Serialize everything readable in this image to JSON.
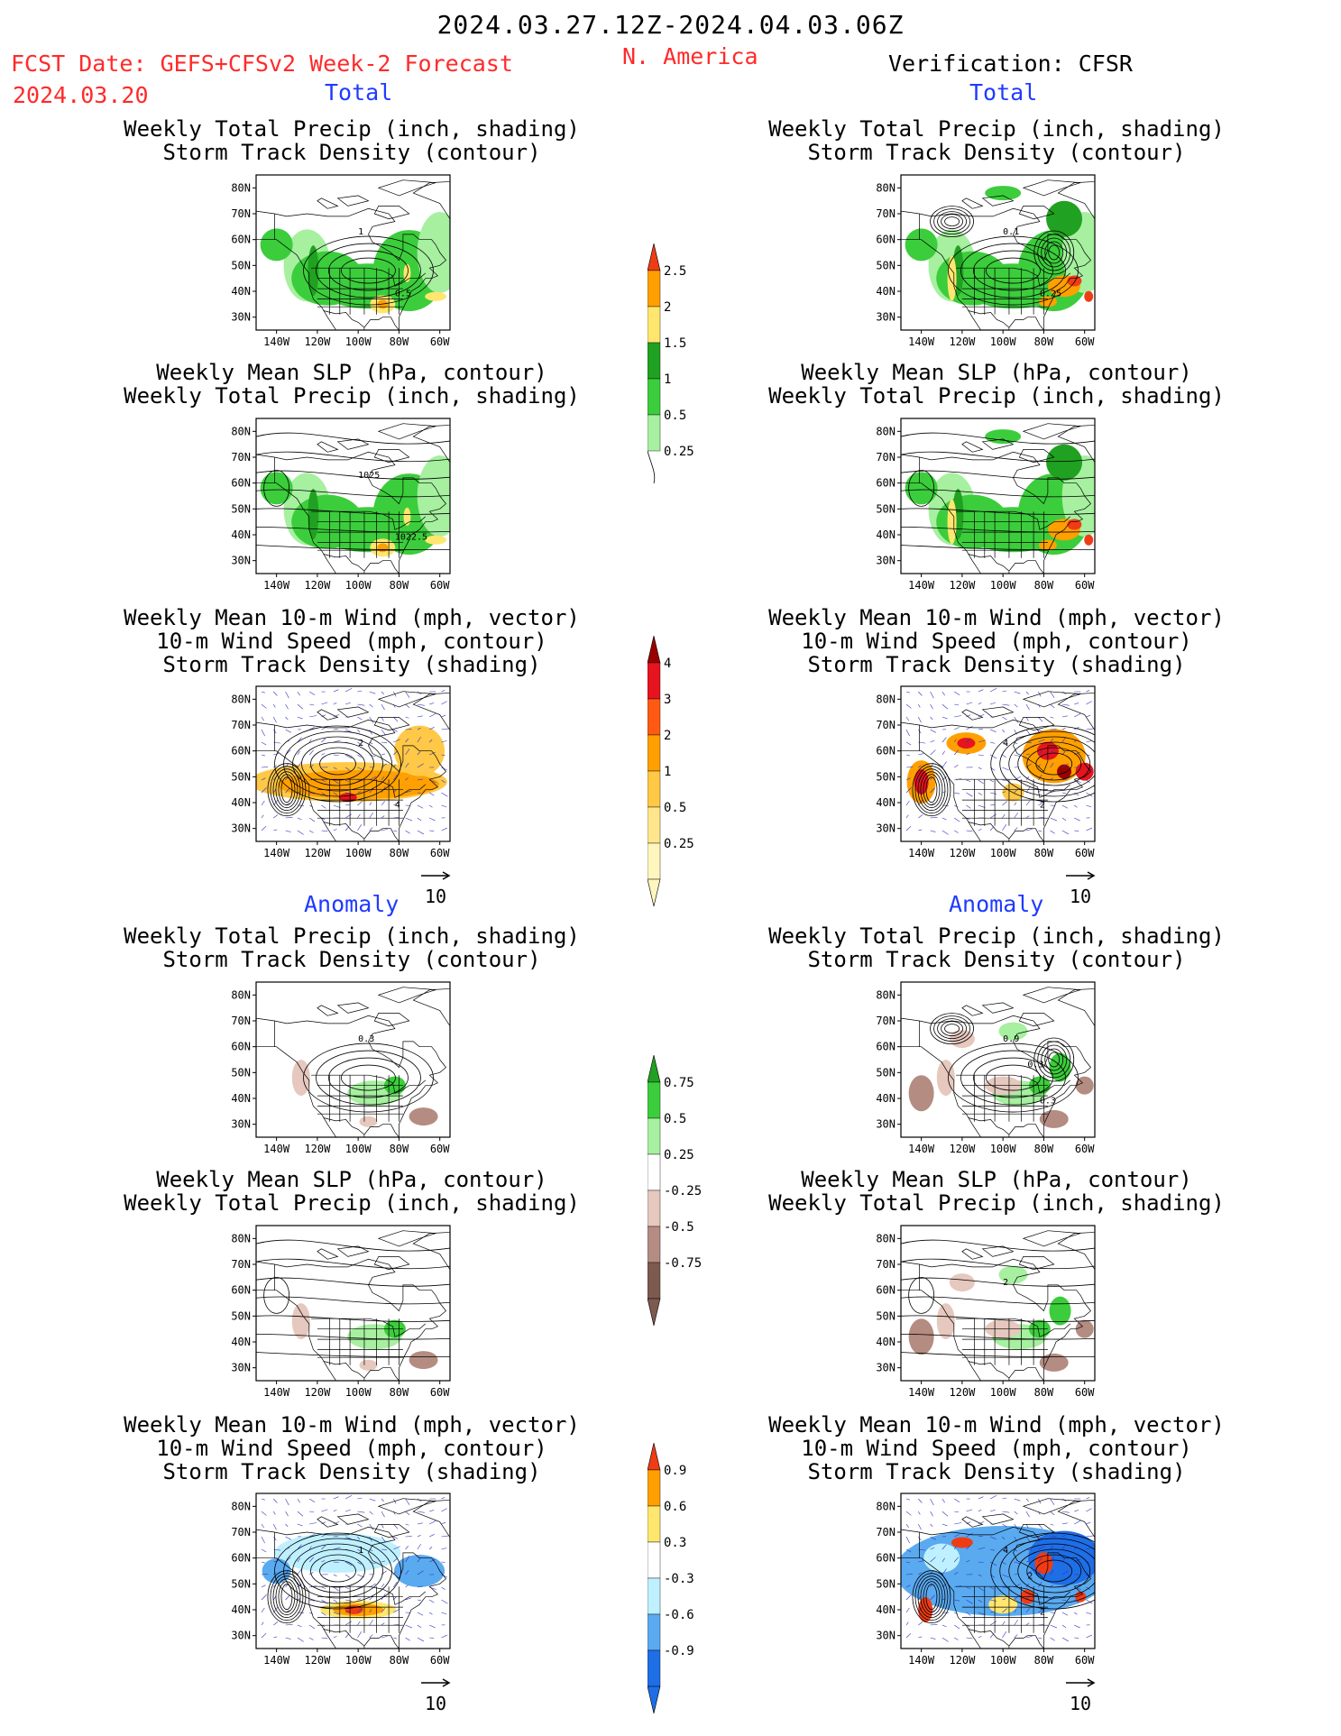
{
  "header": {
    "valid_period": "2024.03.27.12Z-2024.04.03.06Z",
    "fcst_date_label": "FCST Date: GEFS+CFSv2 Week-2 Forecast",
    "fcst_date": "2024.03.20",
    "region": "N. America",
    "verification": "Verification: CFSR"
  },
  "section_labels": {
    "total": "Total",
    "anomaly": "Anomaly"
  },
  "panel_titles": {
    "precip_storm": [
      "Weekly Total Precip (inch, shading)",
      "Storm Track Density (contour)"
    ],
    "slp_precip": [
      "Weekly Mean SLP (hPa, contour)",
      "Weekly Total Precip (inch, shading)"
    ],
    "wind_storm": [
      "Weekly Mean 10-m Wind (mph, vector)",
      "10-m Wind Speed (mph, contour)",
      "Storm Track Density (shading)"
    ]
  },
  "axes": {
    "lat_labels": [
      "80N",
      "70N",
      "60N",
      "50N",
      "40N",
      "30N"
    ],
    "lon_labels": [
      "140W",
      "120W",
      "100W",
      "80W",
      "60W"
    ]
  },
  "vector_reference": "10",
  "map_labels": {
    "fcst_total_precip": [
      "1",
      "0.5"
    ],
    "fcst_total_slp": [
      "1025",
      "1022.5"
    ],
    "fcst_total_wind": [
      "2",
      "4"
    ],
    "obs_total_precip": [
      "0.1",
      "0.25"
    ],
    "obs_total_wind": [
      "4",
      "2"
    ],
    "fcst_anom_precip": [
      "0.3"
    ],
    "obs_anom_precip": [
      "0.9",
      "0.3",
      "0.3"
    ],
    "obs_anom_slp": [
      "2"
    ],
    "fcst_anom_wind": [
      "1"
    ],
    "obs_anom_wind": [
      "4",
      "2",
      "2"
    ]
  },
  "colorbars": {
    "total_precip": {
      "labels": [
        "2.5",
        "2",
        "1.5",
        "1",
        "0.5",
        "0.25"
      ],
      "colors": [
        "#f03c14",
        "#ffa000",
        "#ffe66e",
        "#21a121",
        "#3ccd3c",
        "#a6f0a0"
      ]
    },
    "total_storm": {
      "labels": [
        "4",
        "3",
        "2",
        "1",
        "0.5",
        "0.25"
      ],
      "colors": [
        "#9b0000",
        "#e6141e",
        "#ff5a14",
        "#ffa000",
        "#ffc846",
        "#ffe68c",
        "#fff6be"
      ]
    },
    "anom_precip": {
      "labels": [
        "0.75",
        "0.5",
        "0.25",
        "-0.25",
        "-0.5",
        "-0.75"
      ],
      "colors": [
        "#21a121",
        "#3ccd3c",
        "#a6f0a0",
        "#ffffff",
        "#e6c8be",
        "#b48c82",
        "#7d5a50"
      ]
    },
    "anom_storm": {
      "labels": [
        "0.9",
        "0.6",
        "0.3",
        "-0.3",
        "-0.6",
        "-0.9"
      ],
      "colors": [
        "#f03c14",
        "#ffa000",
        "#ffe66e",
        "#ffffff",
        "#bef0ff",
        "#5aaaf0",
        "#1e6ee6"
      ]
    }
  },
  "colors": {
    "precip_green": "#3ccd3c",
    "precip_dark_green": "#21a121",
    "precip_light_green": "#a6f0a0",
    "precip_yellow": "#ffe66e",
    "precip_orange": "#ffa000",
    "precip_red": "#f03c14",
    "storm_orange": "#ffa000",
    "storm_light_orange": "#ffc846",
    "storm_red": "#e6141e",
    "storm_dark_red": "#9b0000",
    "anom_brown": "#b48c82",
    "anom_light_brown": "#e6c8be",
    "anom_blue": "#1e6ee6",
    "anom_light_blue": "#bef0ff",
    "anom_mid_blue": "#5aaaf0",
    "vector_blue": "#3030c0"
  }
}
